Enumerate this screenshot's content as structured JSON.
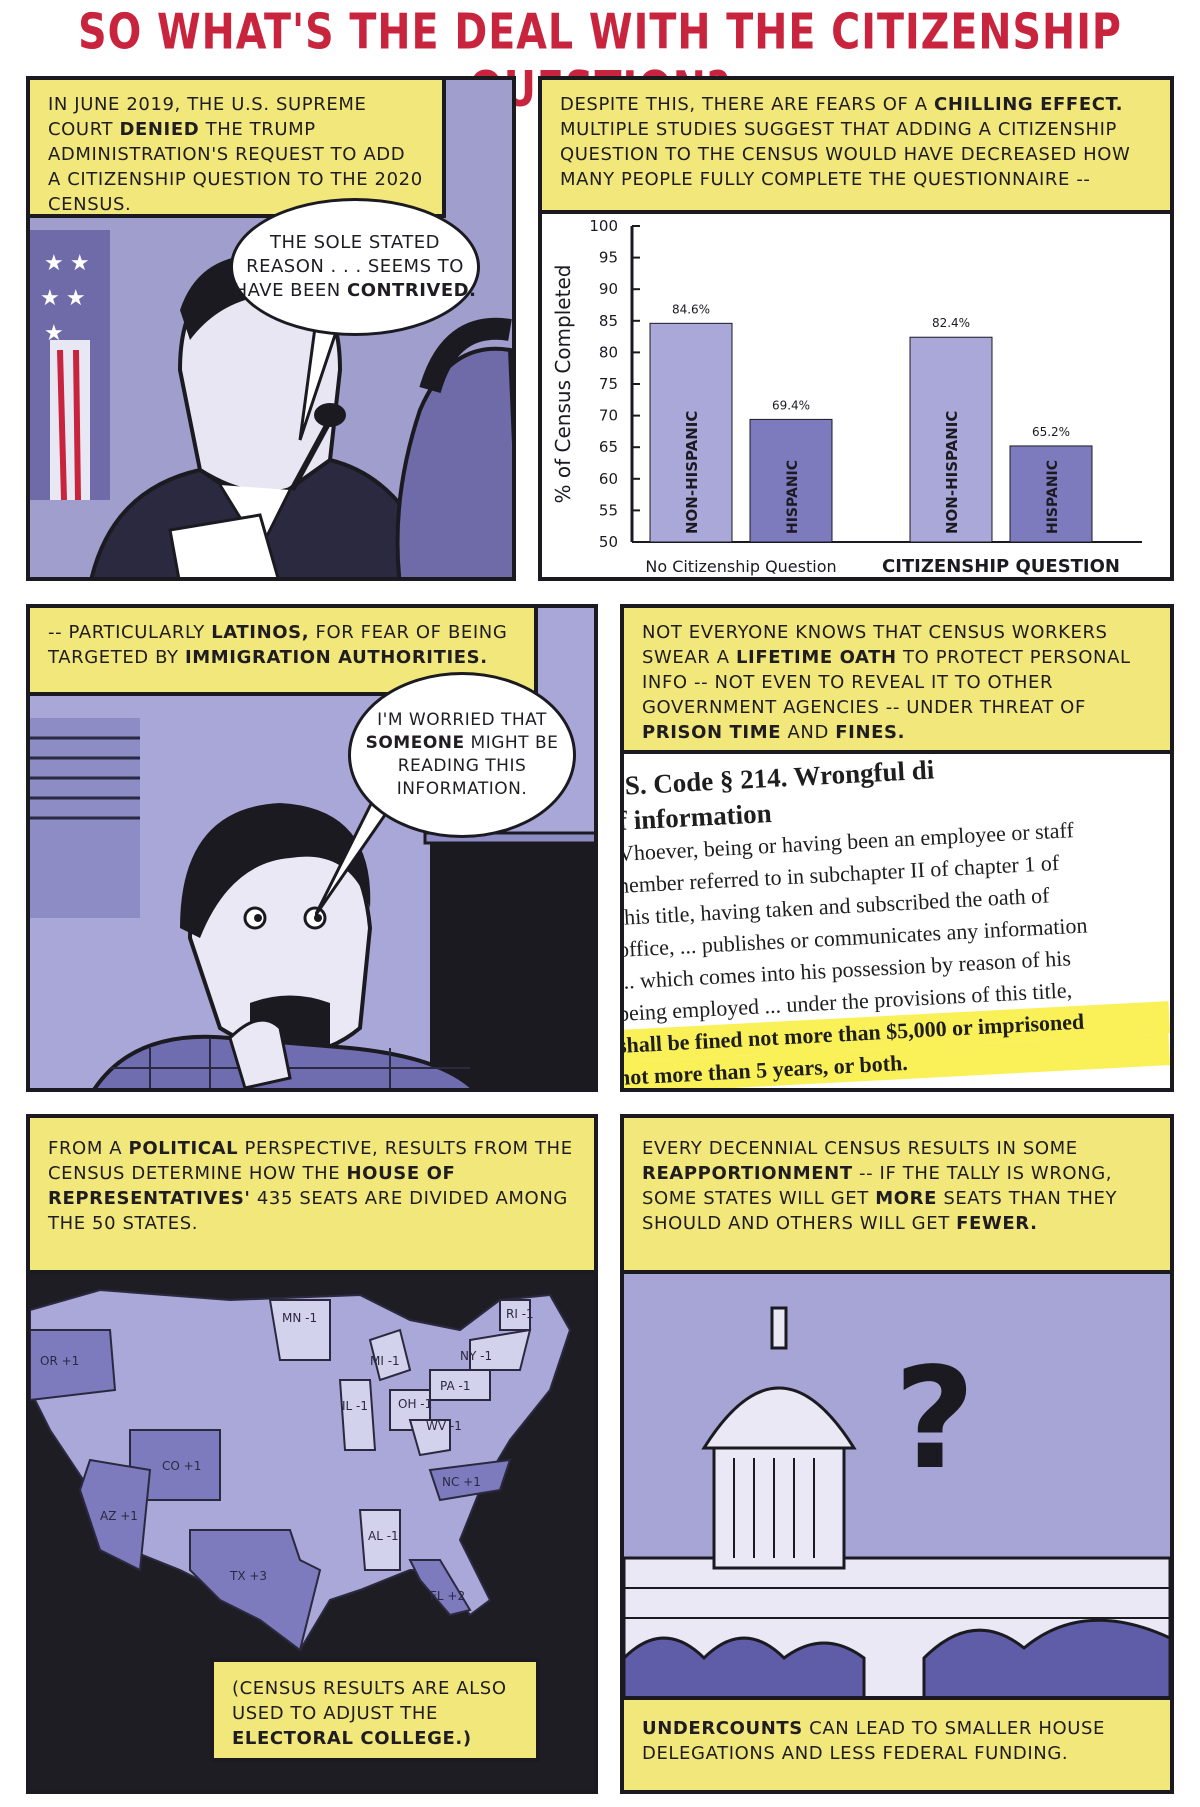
{
  "page": {
    "title": "SO WHAT'S THE DEAL WITH THE CITIZENSHIP QUESTION?"
  },
  "panel1": {
    "caption": [
      "IN JUNE 2019, THE U.S. SUPREME COURT",
      "DENIED",
      "THE TRUMP ADMINISTRATION'S REQUEST TO ADD A CITIZENSHIP QUESTION TO THE 2020 CENSUS."
    ],
    "bubble_plain": "THE SOLE STATED REASON . . . SEEMS TO HAVE BEEN",
    "bubble_bold": "CONTRIVED."
  },
  "panel2": {
    "caption_pre": "DESPITE THIS, THERE ARE FEARS OF A",
    "caption_bold": "CHILLING EFFECT.",
    "caption_post": "MULTIPLE STUDIES SUGGEST THAT ADDING A CITIZENSHIP QUESTION TO THE CENSUS WOULD HAVE DECREASED HOW MANY PEOPLE FULLY COMPLETE THE QUESTIONNAIRE --"
  },
  "chart_data": {
    "type": "bar",
    "categories": [
      "No Citizenship Question",
      "CITIZENSHIP QUESTION"
    ],
    "series": [
      {
        "name": "NON-HISPANIC",
        "values": [
          84.6,
          82.4
        ]
      },
      {
        "name": "HISPANIC",
        "values": [
          69.4,
          65.2
        ]
      }
    ],
    "value_labels": [
      [
        "84.6%",
        "69.4%"
      ],
      [
        "82.4%",
        "65.2%"
      ]
    ],
    "bar_labels": [
      "NON-HISPANIC",
      "HISPANIC"
    ],
    "ylabel": "% of Census Completed",
    "ylim": [
      50,
      100
    ],
    "yticks": [
      "100",
      "95",
      "90",
      "85",
      "80",
      "75",
      "70",
      "65",
      "60",
      "55",
      "50"
    ],
    "colors": {
      "non_hispanic": "#a9a8d8",
      "hispanic": "#7d7bbd"
    }
  },
  "panel3": {
    "caption_a": "-- PARTICULARLY",
    "caption_b": "LATINOS,",
    "caption_c": "FOR FEAR OF BEING TARGETED BY",
    "caption_d": "IMMIGRATION AUTHORITIES.",
    "bubble_a": "I'M WORRIED THAT",
    "bubble_b": "SOMEONE",
    "bubble_c": "MIGHT BE READING THIS INFORMATION."
  },
  "panel4": {
    "caption_a": "NOT EVERYONE KNOWS THAT CENSUS WORKERS SWEAR A",
    "caption_b": "LIFETIME OATH",
    "caption_c": "TO PROTECT PERSONAL INFO -- NOT EVEN TO REVEAL IT TO OTHER GOVERNMENT AGENCIES -- UNDER THREAT OF",
    "caption_d": "PRISON TIME",
    "caption_e": "AND",
    "caption_f": "FINES.",
    "doc_lines": [
      ".S. Code § 214. Wrongful di",
      "f information",
      "Vhoever, being or having been an employee or staff",
      "nember referred to in subchapter II of chapter 1 of",
      "this title, having taken and subscribed the oath of",
      "office, ... publishes or communicates any information",
      "... which comes into his possession by reason of his",
      "being employed ... under the provisions of this title,",
      "shall be fined not more than $5,000 or imprisoned",
      "not more than 5 years, or both."
    ]
  },
  "panel5": {
    "caption_a": "FROM A",
    "caption_b": "POLITICAL",
    "caption_c": "PERSPECTIVE, RESULTS FROM THE CENSUS DETERMINE HOW THE",
    "caption_d": "HOUSE OF REPRESENTATIVES'",
    "caption_e": "435 SEATS ARE DIVIDED AMONG THE 50 STATES.",
    "map_labels": [
      "OR +1",
      "MN -1",
      "RI -1",
      "NY -1",
      "MI -1",
      "PA -1",
      "IL -1",
      "OH -1",
      "WV -1",
      "CO +1",
      "AZ +1",
      "NC +1",
      "AL -1",
      "TX +3",
      "FL +2"
    ],
    "note_a": "(CENSUS RESULTS ARE ALSO USED TO ADJUST THE",
    "note_b": "ELECTORAL COLLEGE.)"
  },
  "panel6": {
    "caption_a": "EVERY DECENNIAL CENSUS RESULTS IN SOME",
    "caption_b": "REAPPORTIONMENT",
    "caption_c": "-- IF THE TALLY IS WRONG, SOME STATES WILL GET",
    "caption_d": "MORE",
    "caption_e": "SEATS THAN THEY SHOULD AND OTHERS WILL GET",
    "caption_f": "FEWER.",
    "question_mark": "?",
    "bottom_a": "UNDERCOUNTS",
    "bottom_b": "CAN LEAD TO SMALLER HOUSE DELEGATIONS AND LESS FEDERAL FUNDING."
  }
}
